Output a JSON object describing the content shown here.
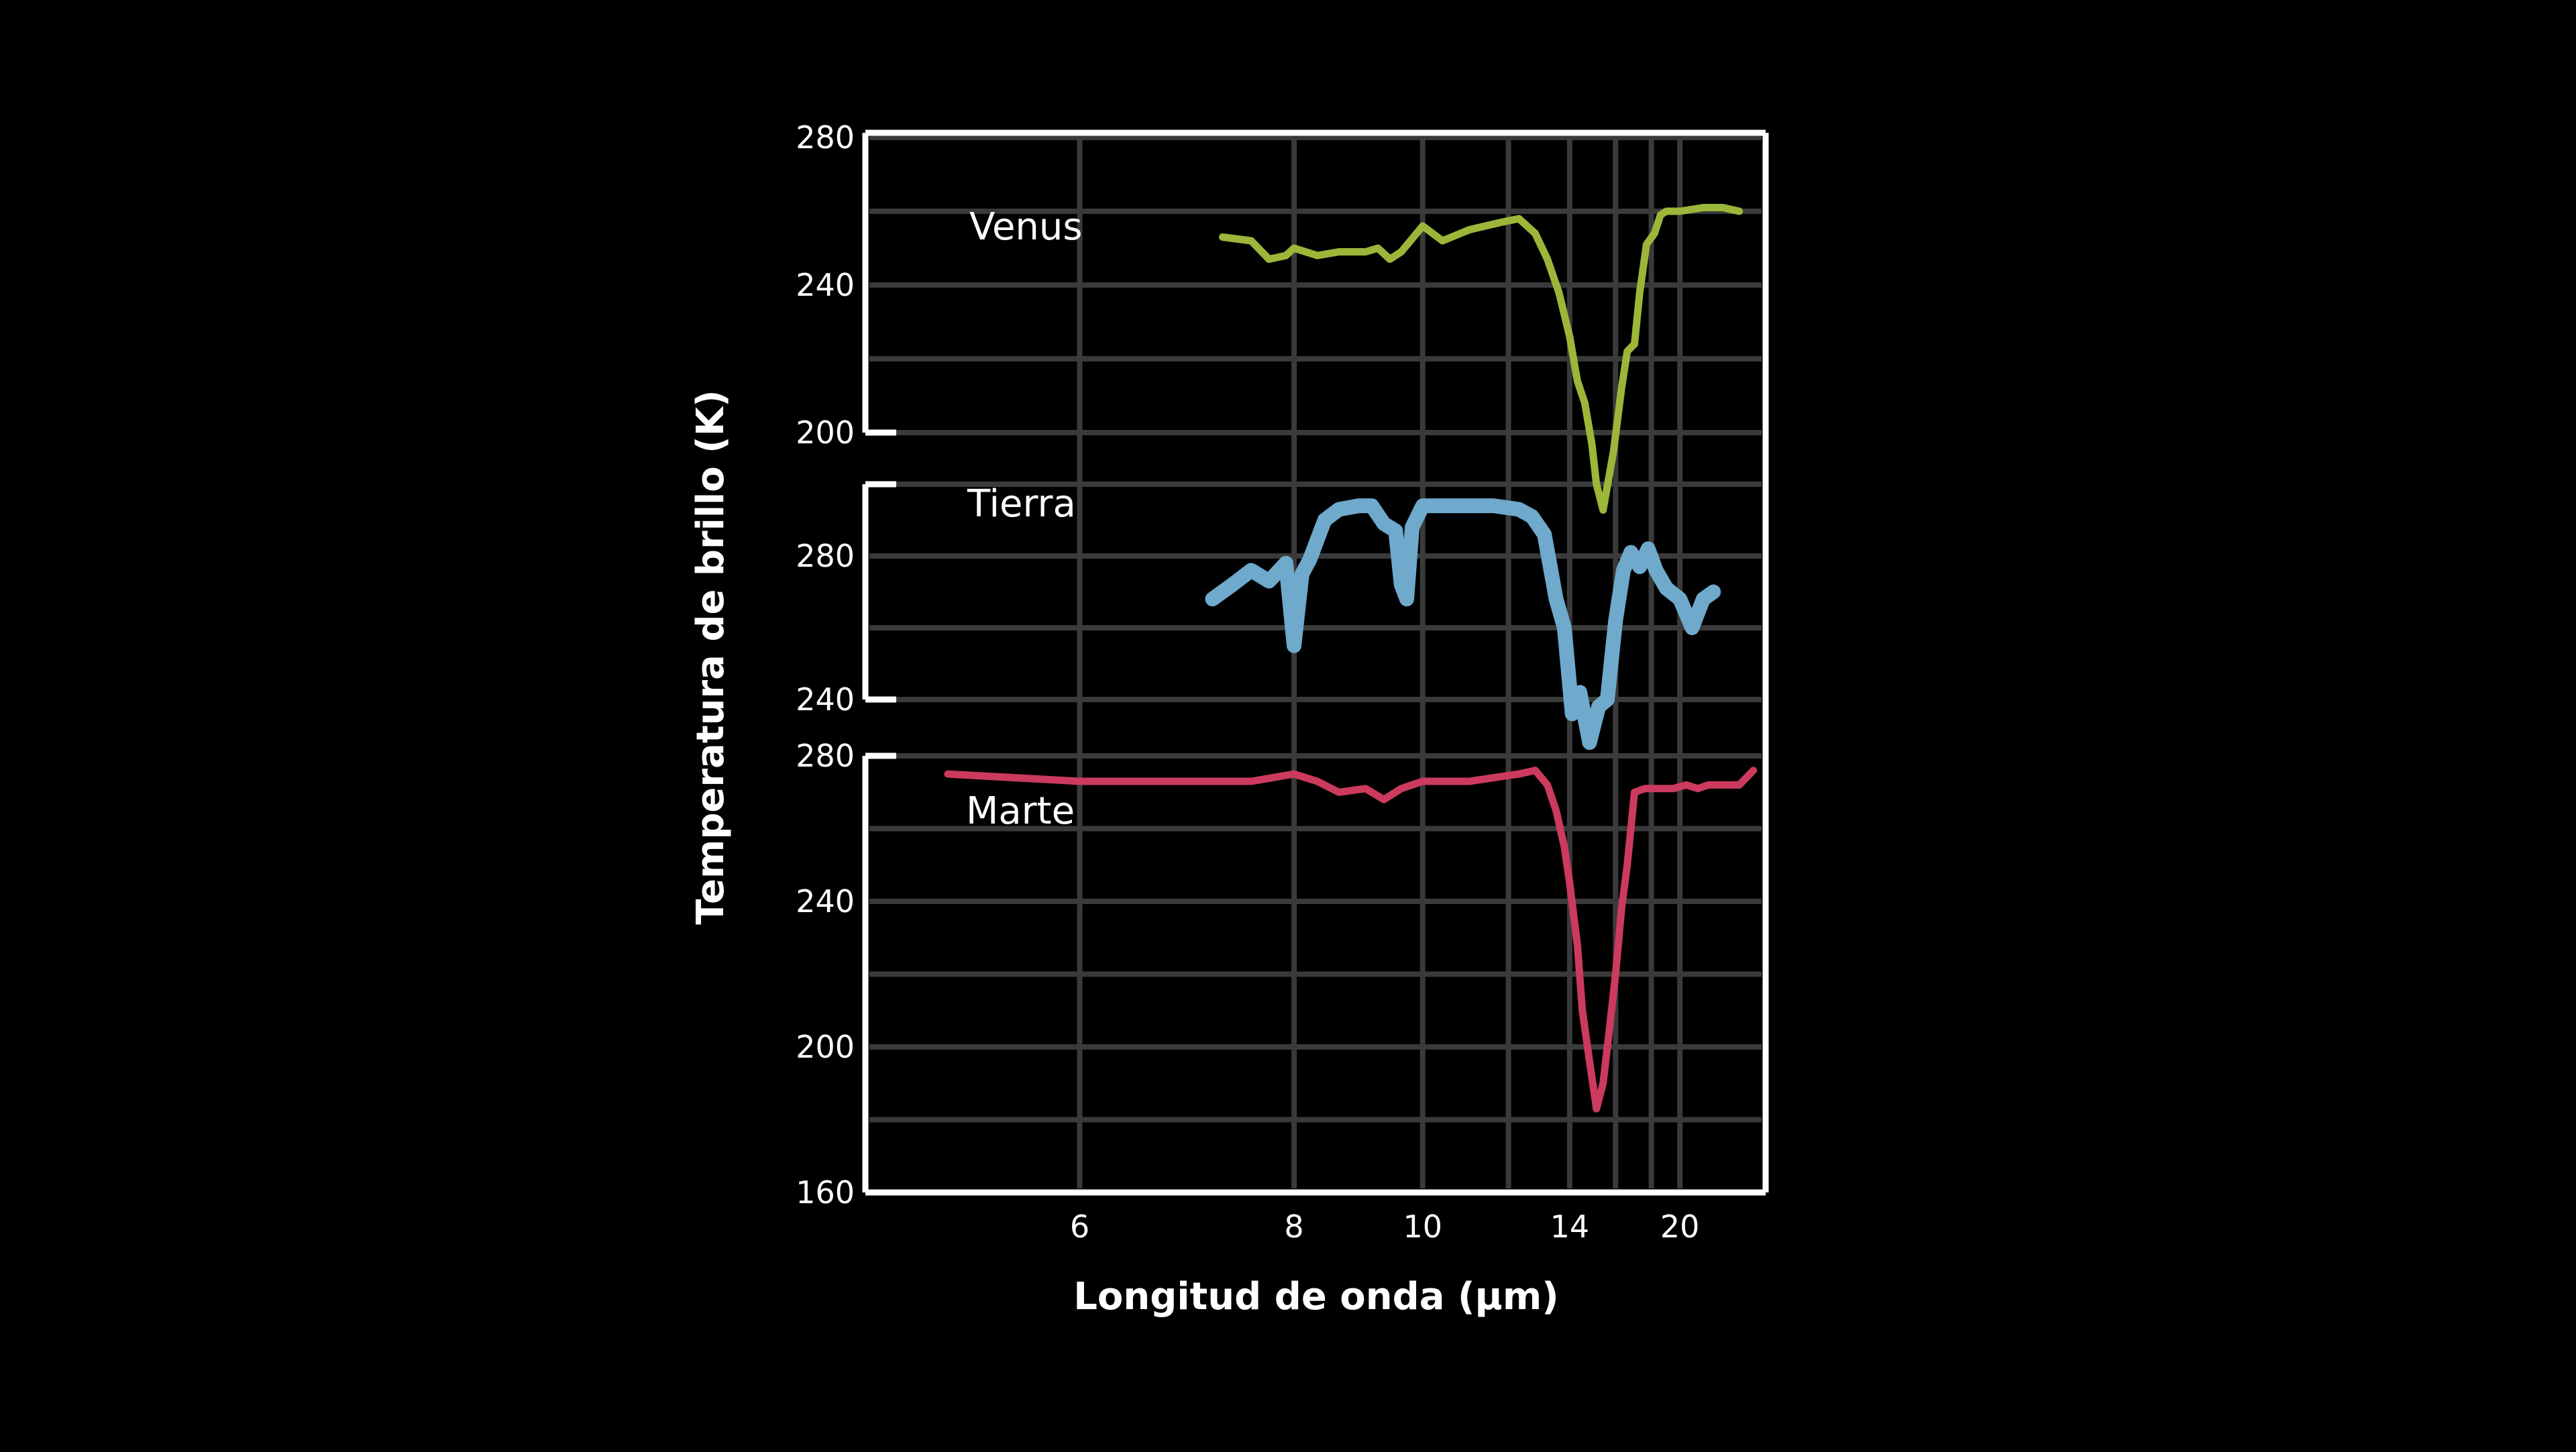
{
  "colors": {
    "background": "#000000",
    "axis": "#ffffff",
    "grid": "#3a3a3a",
    "venus": "#9cb63a",
    "tierra": "#6fa9cc",
    "marte": "#cc3a5e"
  },
  "chart_data": {
    "type": "line",
    "xlabel": "Longitud de onda (μm)",
    "ylabel": "Temperatura de brillo (K)",
    "x_axis": {
      "scale": "reciprocal",
      "ticks": [
        "6",
        "8",
        "10",
        "14",
        "20"
      ],
      "tick_values": [
        6,
        8,
        10,
        14,
        20
      ],
      "range": [
        4.8,
        30
      ]
    },
    "grid": true,
    "panels": [
      {
        "series_name": "Venus",
        "ylim": [
          200,
          280
        ],
        "y_ticks": [
          "200",
          "240",
          "280"
        ],
        "x": [
          7.2,
          7.5,
          7.7,
          7.9,
          8.0,
          8.3,
          8.6,
          9.0,
          9.2,
          9.4,
          9.6,
          10.0,
          10.4,
          11.0,
          11.8,
          12.3,
          12.8,
          13.2,
          13.6,
          14.0,
          14.3,
          14.6,
          14.9,
          15.1,
          15.4,
          15.9,
          16.3,
          16.6,
          17.0,
          17.3,
          17.7,
          18.2,
          18.6,
          19.0,
          20.0,
          22.0,
          24.0,
          26.0
        ],
        "y": [
          253,
          252,
          247,
          248,
          250,
          248,
          249,
          249,
          250,
          247,
          249,
          256,
          252,
          255,
          257,
          258,
          254,
          247,
          238,
          226,
          214,
          208,
          197,
          186,
          179,
          195,
          212,
          222,
          224,
          238,
          251,
          254,
          259,
          260,
          260,
          261,
          261,
          260
        ]
      },
      {
        "series_name": "Tierra",
        "ylim": [
          240,
          300
        ],
        "y_ticks": [
          "240",
          "280"
        ],
        "x": [
          7.1,
          7.3,
          7.5,
          7.7,
          7.9,
          8.0,
          8.1,
          8.2,
          8.4,
          8.6,
          8.9,
          9.1,
          9.3,
          9.5,
          9.6,
          9.7,
          9.8,
          10.0,
          10.4,
          11.0,
          11.6,
          12.3,
          12.7,
          13.1,
          13.5,
          13.8,
          14.1,
          14.4,
          14.8,
          15.2,
          15.6,
          16.0,
          16.4,
          16.8,
          17.3,
          17.8,
          18.3,
          19.0,
          20.0,
          21.0,
          22.0,
          23.0
        ],
        "y": [
          268,
          272,
          276,
          273,
          278,
          255,
          275,
          279,
          290,
          293,
          294,
          294,
          289,
          287,
          272,
          268,
          288,
          294,
          294,
          294,
          294,
          293,
          291,
          286,
          268,
          260,
          236,
          242,
          228,
          238,
          240,
          262,
          276,
          281,
          277,
          282,
          276,
          271,
          268,
          260,
          268,
          270
        ]
      },
      {
        "series_name": "Marte",
        "ylim": [
          160,
          280
        ],
        "y_ticks": [
          "160",
          "200",
          "240",
          "280"
        ],
        "x": [
          5.2,
          6.0,
          7.0,
          7.5,
          8.0,
          8.3,
          8.6,
          9.0,
          9.3,
          9.6,
          10.0,
          10.5,
          11.0,
          11.6,
          12.3,
          12.8,
          13.2,
          13.5,
          13.8,
          14.0,
          14.3,
          14.5,
          14.8,
          15.1,
          15.4,
          15.7,
          16.0,
          16.3,
          16.6,
          17.0,
          17.6,
          18.5,
          19.5,
          20.5,
          21.5,
          22.5,
          24.0,
          26.0,
          28.0
        ],
        "y": [
          275,
          273,
          273,
          273,
          275,
          273,
          270,
          271,
          268,
          271,
          273,
          273,
          273,
          274,
          275,
          276,
          272,
          265,
          255,
          245,
          228,
          210,
          196,
          183,
          190,
          205,
          220,
          238,
          250,
          270,
          271,
          271,
          271,
          272,
          271,
          272,
          272,
          272,
          276
        ]
      }
    ]
  }
}
